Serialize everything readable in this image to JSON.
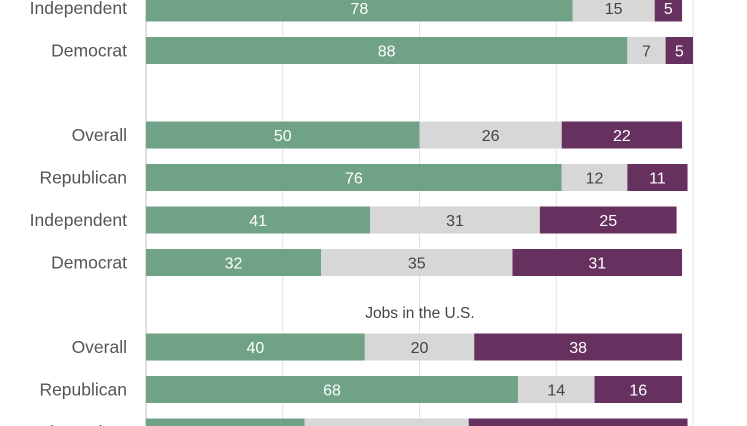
{
  "chart_data": {
    "type": "bar",
    "orientation": "horizontal",
    "stacked": true,
    "xlim": [
      0,
      100
    ],
    "grid": true,
    "colors": [
      "#6fa286",
      "#d7d7d7",
      "#66305f"
    ],
    "groups": [
      {
        "title": "",
        "rows": [
          {
            "label": "Independent",
            "values": [
              78,
              15,
              5
            ]
          },
          {
            "label": "Democrat",
            "values": [
              88,
              7,
              5
            ]
          }
        ]
      },
      {
        "title": "",
        "rows": [
          {
            "label": "Overall",
            "values": [
              50,
              26,
              22
            ]
          },
          {
            "label": "Republican",
            "values": [
              76,
              12,
              11
            ]
          },
          {
            "label": "Independent",
            "values": [
              41,
              31,
              25
            ]
          },
          {
            "label": "Democrat",
            "values": [
              32,
              35,
              31
            ]
          }
        ]
      },
      {
        "title": "Jobs in the U.S.",
        "rows": [
          {
            "label": "Overall",
            "values": [
              40,
              20,
              38
            ]
          },
          {
            "label": "Republican",
            "values": [
              68,
              14,
              16
            ]
          },
          {
            "label": "Independent",
            "values": [
              29,
              30,
              40
            ]
          }
        ]
      }
    ]
  }
}
